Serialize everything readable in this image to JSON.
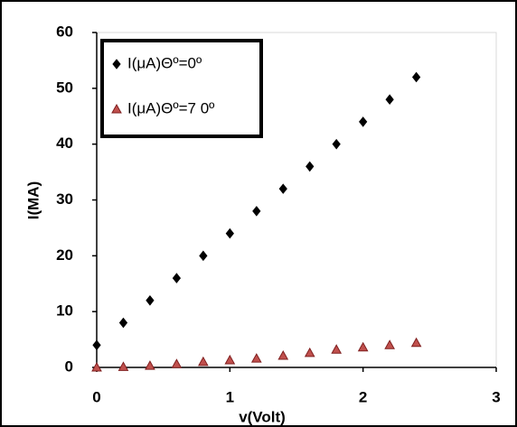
{
  "chart_data": {
    "type": "scatter",
    "x_label": "v(Volt)",
    "y_label": "I(MA)",
    "xlim": [
      0,
      3
    ],
    "xticks": [
      0,
      1,
      2,
      3
    ],
    "ylim": [
      0,
      60
    ],
    "yticks": [
      0,
      10,
      20,
      30,
      40,
      50,
      60
    ],
    "legend": "upper left",
    "series": [
      {
        "name": "I(μA)Θº=0º",
        "color": "#000000",
        "marker": "diamond",
        "x": [
          0,
          0.2,
          0.4,
          0.6,
          0.8,
          1.0,
          1.2,
          1.4,
          1.6,
          1.8,
          2.0,
          2.2,
          2.4
        ],
        "values": [
          4,
          8,
          12,
          16,
          20,
          24,
          28,
          32,
          36,
          40,
          44,
          48,
          52
        ]
      },
      {
        "name": "I(μA)Θº=7 0º",
        "color": "#c0504d",
        "marker": "triangle",
        "x": [
          0,
          0.2,
          0.4,
          0.6,
          0.8,
          1.0,
          1.2,
          1.4,
          1.6,
          1.8,
          2.0,
          2.2,
          2.4
        ],
        "values": [
          0,
          0.1,
          0.3,
          0.6,
          1.0,
          1.3,
          1.6,
          2.1,
          2.6,
          3.2,
          3.6,
          4.0,
          4.4
        ]
      }
    ]
  }
}
